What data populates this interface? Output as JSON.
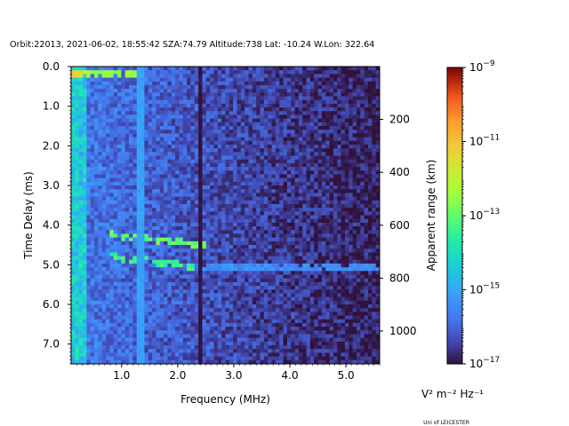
{
  "chart_data": {
    "type": "heatmap",
    "title": "Orbit:22013, 2021-06-02, 18:55:42 SZA:74.79 Altitude:738 Lat: -10.24 W.Lon: 322.64",
    "xlabel": "Frequency (MHz)",
    "ylabel": "Time Delay (ms)",
    "y2label": "Apparent range (km)",
    "xlim": [
      0.1,
      5.6
    ],
    "ylim": [
      7.5,
      0.0
    ],
    "x_ticks": [
      "1.0",
      "2.0",
      "3.0",
      "4.0",
      "5.0"
    ],
    "y_ticks": [
      "0.0",
      "1.0",
      "2.0",
      "3.0",
      "4.0",
      "5.0",
      "6.0",
      "7.0"
    ],
    "y2_ticks": [
      "200",
      "400",
      "600",
      "800",
      "1000"
    ],
    "y2_scale_km_per_ms": 149.9,
    "colorbar": {
      "scale": "log",
      "min": 1e-17,
      "max": 1e-09,
      "colormap": "turbo",
      "units": "V² m⁻² Hz⁻¹",
      "tick_labels": [
        {
          "base": "10",
          "exp": "−9"
        },
        {
          "base": "10",
          "exp": "−11"
        },
        {
          "base": "10",
          "exp": "−13"
        },
        {
          "base": "10",
          "exp": "−15"
        },
        {
          "base": "10",
          "exp": "−17"
        }
      ]
    },
    "features": [
      {
        "name": "surface echo",
        "time_delay_ms": 0.2,
        "freq_range_mhz": [
          0.1,
          1.3
        ],
        "log_power": -12.5
      },
      {
        "name": "trace",
        "time_delay_ms": [
          4.25,
          4.5
        ],
        "freq_range_mhz": [
          0.8,
          2.5
        ],
        "log_power": -13
      },
      {
        "name": "trace",
        "time_delay_ms": [
          4.8,
          5.05
        ],
        "freq_range_mhz": [
          0.8,
          2.3
        ],
        "log_power": -13.5
      },
      {
        "name": "horizontal line",
        "time_delay_ms": 5.05,
        "freq_range_mhz": [
          2.4,
          5.6
        ],
        "log_power": -15.3
      },
      {
        "name": "vertical line",
        "freq_mhz": 2.4,
        "log_power": -17
      },
      {
        "name": "vertical line",
        "freq_mhz": 1.35,
        "log_power": -15
      }
    ],
    "background_log_power": {
      "low_freq": -15.5,
      "high_freq": -16.8
    }
  },
  "footer": {
    "credit": "Uni of LEICESTER"
  }
}
